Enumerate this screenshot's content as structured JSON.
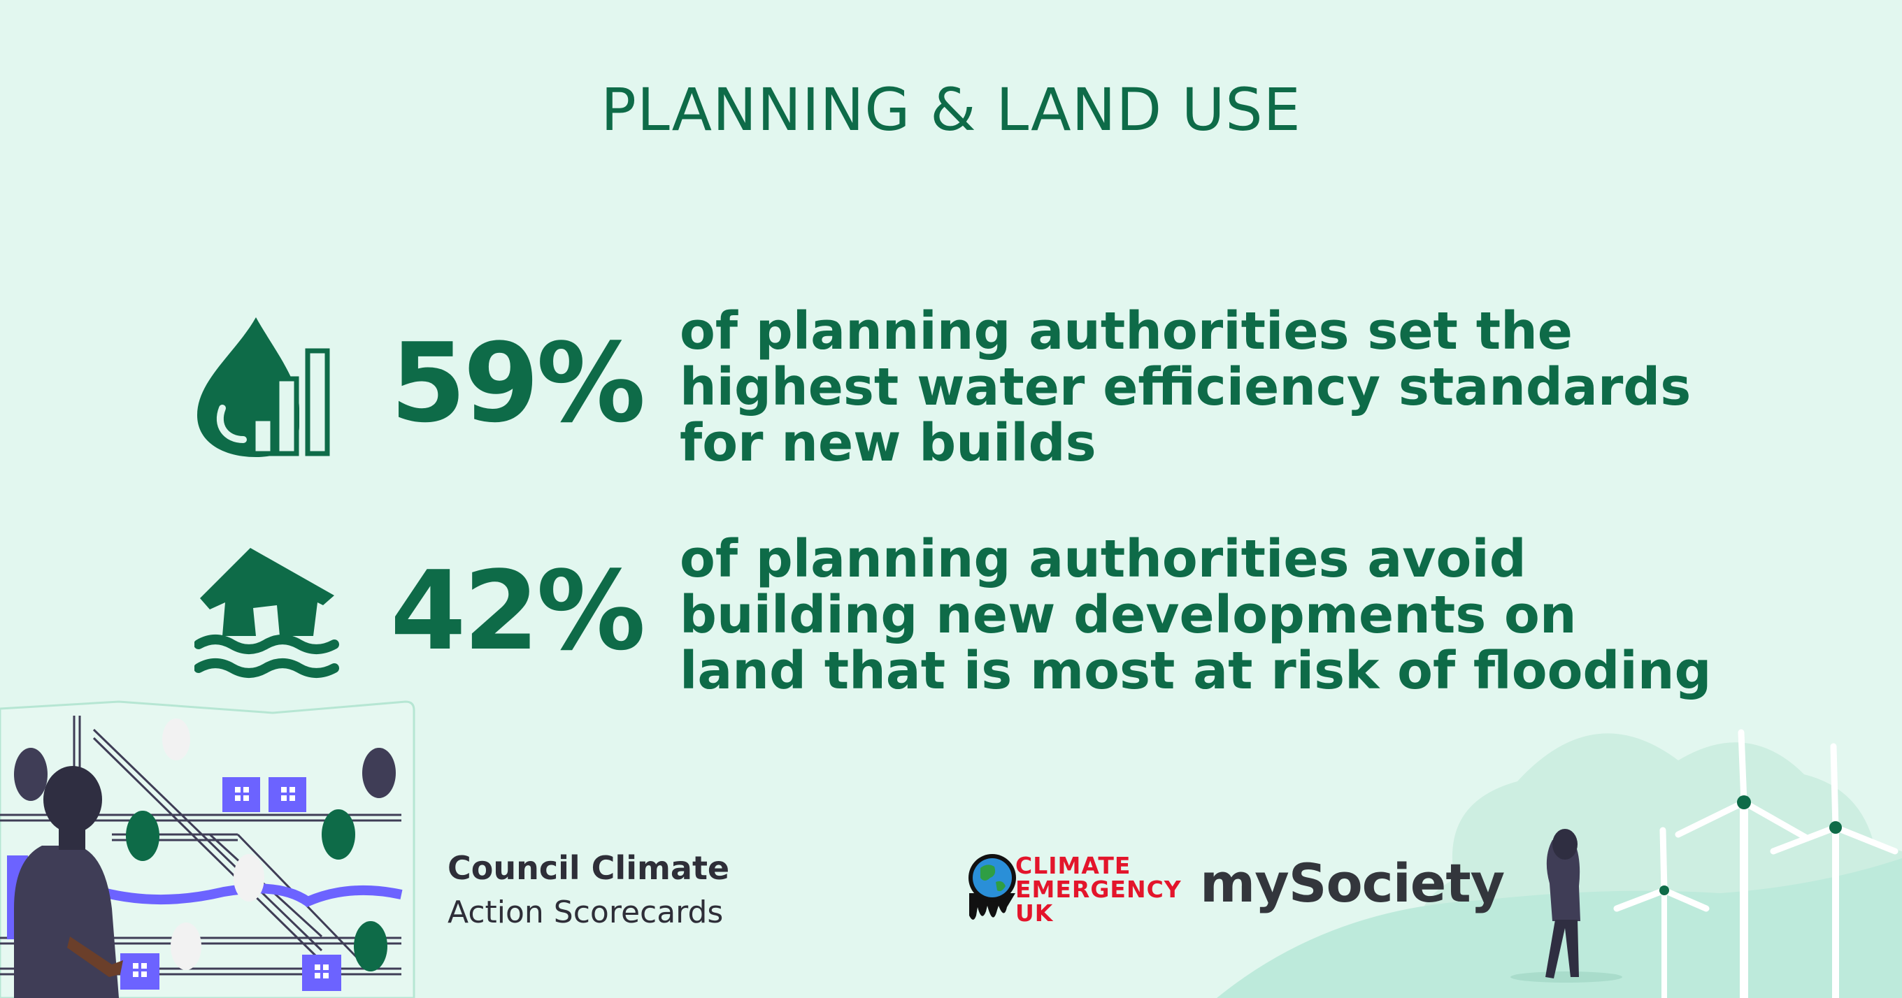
{
  "title": "PLANNING & LAND USE",
  "stats": [
    {
      "percent": "59%",
      "lines": [
        "of planning authorities set the",
        "highest water efficiency standards",
        "for new builds"
      ],
      "icon": "water-drop-bar-chart-icon"
    },
    {
      "percent": "42%",
      "lines": [
        "of planning authorities avoid",
        "building new developments on",
        "land that is most at risk of flooding"
      ],
      "icon": "flooded-house-icon"
    }
  ],
  "branding": {
    "line1": "Council Climate",
    "line2": "Action Scorecards"
  },
  "partners": {
    "climate_emergency": [
      "CLIMATE",
      "EMERGENCY",
      "UK"
    ],
    "mysociety": "mySociety"
  },
  "colors": {
    "accent": "#0e6b48",
    "background": "#e2f7ef",
    "ce_red": "#e3152b",
    "purple": "#6c63ff"
  }
}
